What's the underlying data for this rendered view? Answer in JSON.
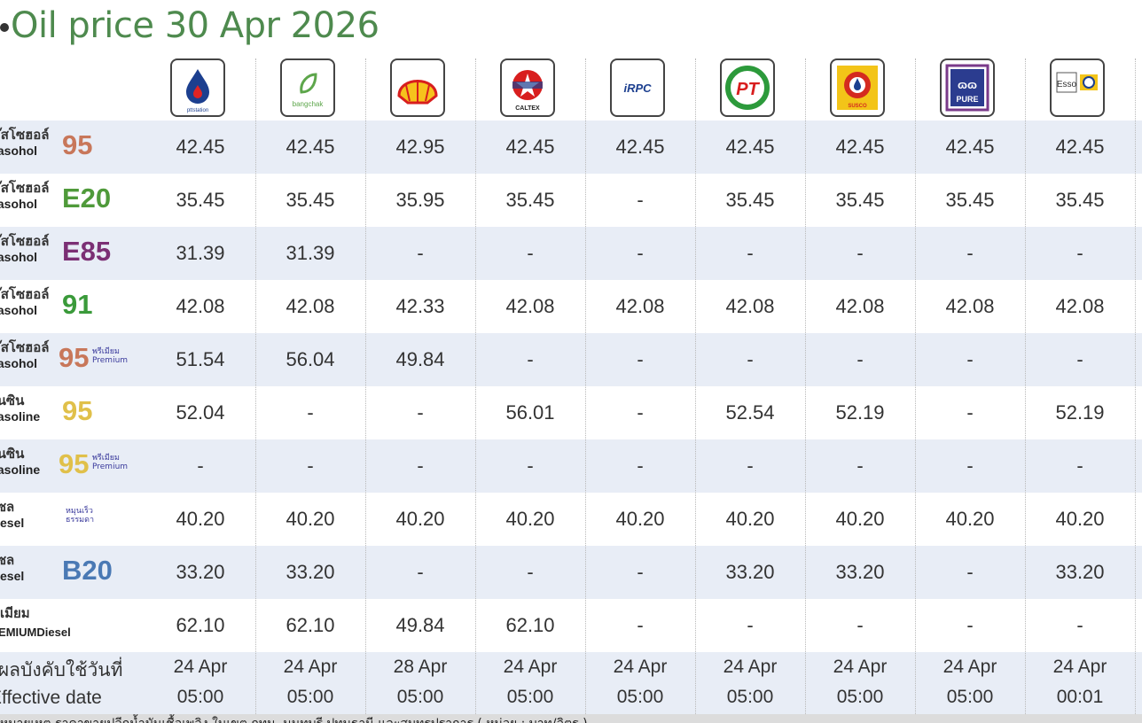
{
  "title": "Oil price 30 Apr 2026",
  "brands": [
    {
      "name": "PTT Station",
      "icon": "ptt-logo-icon",
      "logo_text": "pttstation"
    },
    {
      "name": "Bangchak",
      "icon": "bangchak-logo-icon",
      "logo_text": "bangchak"
    },
    {
      "name": "Shell",
      "icon": "shell-logo-icon",
      "logo_text": ""
    },
    {
      "name": "Caltex",
      "icon": "caltex-logo-icon",
      "logo_text": "CALTEX"
    },
    {
      "name": "IRPC",
      "icon": "irpc-logo-icon",
      "logo_text": "IRPC"
    },
    {
      "name": "PT",
      "icon": "pt-logo-icon",
      "logo_text": "PT"
    },
    {
      "name": "Susco",
      "icon": "susco-logo-icon",
      "logo_text": "SUSCO"
    },
    {
      "name": "Pure",
      "icon": "pure-logo-icon",
      "logo_text": "PURE"
    },
    {
      "name": "Esso",
      "icon": "esso-logo-icon",
      "logo_text": ""
    }
  ],
  "rows": [
    {
      "th": "แก๊สโซฮอล์",
      "en": "Gasohol",
      "code": "95",
      "code_color": "#c8775a",
      "note": "",
      "prices": [
        "42.45",
        "42.45",
        "42.95",
        "42.45",
        "42.45",
        "42.45",
        "42.45",
        "42.45",
        "42.45"
      ]
    },
    {
      "th": "แก๊สโซฮอล์",
      "en": "Gasohol",
      "code": "E20",
      "code_color": "#4f9a3a",
      "note": "",
      "prices": [
        "35.45",
        "35.45",
        "35.95",
        "35.45",
        "-",
        "35.45",
        "35.45",
        "35.45",
        "35.45"
      ]
    },
    {
      "th": "แก๊สโซฮอล์",
      "en": "Gasohol",
      "code": "E85",
      "code_color": "#7b2f74",
      "note": "",
      "prices": [
        "31.39",
        "31.39",
        "-",
        "-",
        "-",
        "-",
        "-",
        "-",
        "-"
      ]
    },
    {
      "th": "แก๊สโซฮอล์",
      "en": "Gasohol",
      "code": "91",
      "code_color": "#3a9a3a",
      "note": "",
      "prices": [
        "42.08",
        "42.08",
        "42.33",
        "42.08",
        "42.08",
        "42.08",
        "42.08",
        "42.08",
        "42.08"
      ]
    },
    {
      "th": "แก๊สโซฮอล์",
      "en": "Gasohol",
      "code": "95",
      "code_color": "#c8775a",
      "note": "พรีเมียม Premium",
      "prices": [
        "51.54",
        "56.04",
        "49.84",
        "-",
        "-",
        "-",
        "-",
        "-",
        "-"
      ]
    },
    {
      "th": "เบนซิน",
      "en": "Gasoline",
      "code": "95",
      "code_color": "#e0c04a",
      "note": "",
      "prices": [
        "52.04",
        "-",
        "-",
        "56.01",
        "-",
        "52.54",
        "52.19",
        "-",
        "52.19"
      ]
    },
    {
      "th": "เบนซิน",
      "en": "Gasoline",
      "code": "95",
      "code_color": "#e0c04a",
      "note": "พรีเมียม Premium",
      "prices": [
        "-",
        "-",
        "-",
        "-",
        "-",
        "-",
        "-",
        "-",
        "-"
      ]
    },
    {
      "th": "ดีเซล",
      "en": "Diesel",
      "code": "",
      "code_color": "#333333",
      "note": "หมุนเร็ว ธรรมดา",
      "prices": [
        "40.20",
        "40.20",
        "40.20",
        "40.20",
        "40.20",
        "40.20",
        "40.20",
        "40.20",
        "40.20"
      ]
    },
    {
      "th": "ดีเซล",
      "en": "Diesel",
      "code": "B20",
      "code_color": "#4a79b4",
      "note": "",
      "prices": [
        "33.20",
        "33.20",
        "-",
        "-",
        "-",
        "33.20",
        "33.20",
        "-",
        "33.20"
      ]
    },
    {
      "th": "พรีเมียม",
      "en": "PREMIUMDiesel",
      "code": "",
      "code_color": "#333333",
      "note": "",
      "prices": [
        "62.10",
        "62.10",
        "49.84",
        "62.10",
        "-",
        "-",
        "-",
        "-",
        "-"
      ]
    }
  ],
  "effective": {
    "th": "มีผลบังคับใช้วันที่",
    "en": "Effective date",
    "dates": [
      "24 Apr",
      "24 Apr",
      "28 Apr",
      "24 Apr",
      "24 Apr",
      "24 Apr",
      "24 Apr",
      "24 Apr",
      "24 Apr"
    ],
    "times": [
      "05:00",
      "05:00",
      "05:00",
      "05:00",
      "05:00",
      "05:00",
      "05:00",
      "05:00",
      "00:01"
    ]
  },
  "footer": "หมายเหตุ ราคาขายปลีกน้ำมันเชื้อเพลิง ในเขต กทม. นนทบุรี ปทุมธานี และสมุทรปราการ ( หน่วย : บาท/ลิตร )"
}
